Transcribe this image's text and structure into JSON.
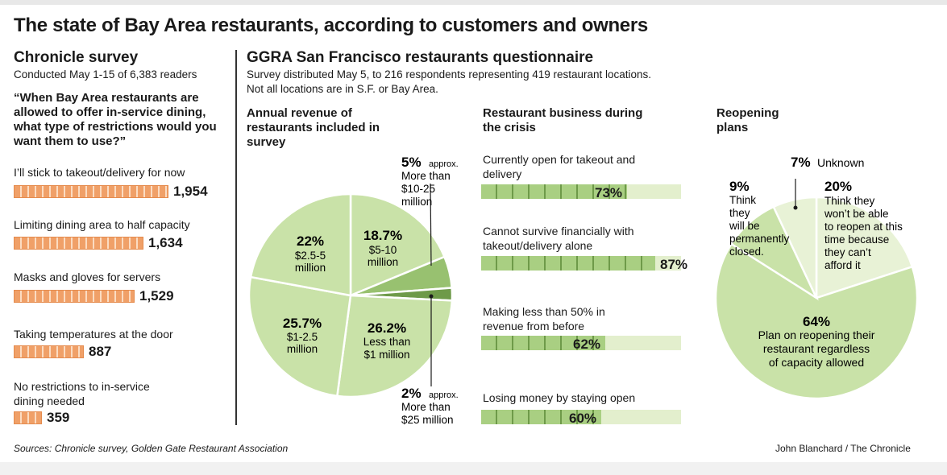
{
  "title": "The state of Bay Area restaurants, according to customers and owners",
  "left": {
    "title": "Chronicle survey",
    "subtitle": "Conducted May 1-15 of 6,383 readers",
    "question": "“When Bay Area restaurants are allowed to offer in-service dining, what type of restrictions would you want them to use?”"
  },
  "right": {
    "title": "GGRA San Francisco restaurants questionnaire",
    "subtitle1": "Survey distributed May 5, to 216 respondents representing 419 restaurant locations.",
    "subtitle2": "Not all locations are in S.F. or Bay Area."
  },
  "chart_data": [
    {
      "type": "bar",
      "orientation": "horizontal",
      "categories": [
        "I’ll stick to takeout/delivery for now",
        "Limiting dining area to half capacity",
        "Masks and gloves for servers",
        "Taking temperatures at the door",
        "No restrictions to in-service dining needed"
      ],
      "values": [
        1954,
        1634,
        1529,
        887,
        359
      ],
      "value_labels": [
        "1,954",
        "1,634",
        "1,529",
        "887",
        "359"
      ],
      "color": "#f0a068"
    },
    {
      "type": "pie",
      "title": "Annual revenue of restaurants included in survey",
      "slices": [
        {
          "pct": "18.7%",
          "value": 18.7,
          "label": "$5-10 million",
          "color": "#c9e2a8"
        },
        {
          "pct": "5%",
          "qual": "approx.",
          "value": 5,
          "label": "More than $10-25 million",
          "color": "#98c170"
        },
        {
          "pct": "2%",
          "qual": "approx.",
          "value": 2,
          "label": "More than $25 million",
          "color": "#6e9a49"
        },
        {
          "pct": "26.2%",
          "value": 26.2,
          "label": "Less than $1 million",
          "color": "#c9e2a8"
        },
        {
          "pct": "25.7%",
          "value": 25.7,
          "label": "$1-2.5 million",
          "color": "#c9e2a8"
        },
        {
          "pct": "22%",
          "value": 22,
          "label": "$2.5-5 million",
          "color": "#c9e2a8"
        }
      ]
    },
    {
      "type": "bar",
      "title": "Restaurant business during the crisis",
      "categories": [
        "Currently open for takeout and delivery",
        "Cannot survive financially with takeout/delivery alone",
        "Making less than 50% in revenue from before",
        "Losing money by staying open"
      ],
      "values": [
        73,
        87,
        62,
        60
      ],
      "ylim": [
        0,
        100
      ],
      "colors": {
        "fill": "#a9cf82",
        "track": "#e3efcd"
      }
    },
    {
      "type": "pie",
      "title": "Reopening plans",
      "slices": [
        {
          "pct": "20%",
          "value": 20,
          "label": "Think they won’t be able to reopen at this time because they can’t afford it",
          "color": "#e8f2d6"
        },
        {
          "pct": "64%",
          "value": 64,
          "label": "Plan on reopening their restaurant regardless of capacity allowed",
          "color": "#c9e2a8"
        },
        {
          "pct": "9%",
          "value": 9,
          "label": "Think they will be permanently closed.",
          "color": "#c9e2a8"
        },
        {
          "pct": "7%",
          "value": 7,
          "label": "Unknown",
          "color": "#e8f2d6"
        }
      ]
    }
  ],
  "footer": {
    "sources": "Sources: Chronicle survey, Golden Gate Restaurant Association",
    "credit": "John Blanchard / The Chronicle"
  }
}
